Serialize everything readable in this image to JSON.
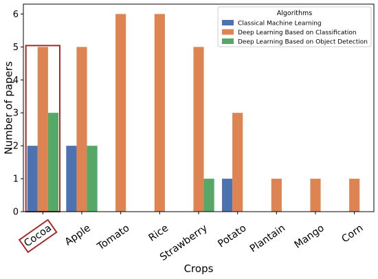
{
  "chart_data": {
    "type": "bar",
    "xlabel": "Crops",
    "ylabel": "Number of papers",
    "ylim": [
      0,
      6.3
    ],
    "yticks": [
      0,
      1,
      2,
      3,
      4,
      5,
      6
    ],
    "categories": [
      "Cocoa",
      "Apple",
      "Tomato",
      "Rice",
      "Strawberry",
      "Potato",
      "Plantain",
      "Mango",
      "Corn"
    ],
    "series": [
      {
        "name": "Classical Machine Learning",
        "color": "#4c72b0",
        "values": [
          2,
          2,
          0,
          0,
          0,
          1,
          0,
          0,
          0
        ]
      },
      {
        "name": "Deep Learning Based on Classification",
        "color": "#dd8452",
        "values": [
          5,
          5,
          6,
          6,
          5,
          3,
          1,
          1,
          1
        ]
      },
      {
        "name": "Deep Learning Based on Object Detection",
        "color": "#55a868",
        "values": [
          3,
          2,
          0,
          0,
          1,
          0,
          0,
          0,
          0
        ]
      }
    ],
    "legend": {
      "title": "Algorithms",
      "position": "top-right"
    },
    "highlight": {
      "category": "Cocoa",
      "color": "#a52a2a"
    },
    "grid": false
  }
}
